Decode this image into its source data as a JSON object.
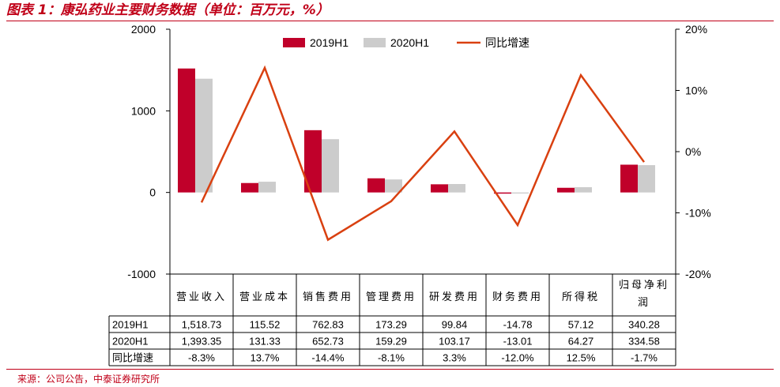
{
  "figure": {
    "title": "图表 1：康弘药业主要财务数据（单位：百万元，%）",
    "source": "来源：公司公告，中泰证券研究所"
  },
  "colors": {
    "s2019": "#c0002a",
    "s2020": "#cccccc",
    "line": "#d94010",
    "accent": "#c00018"
  },
  "chart_data": {
    "type": "bar",
    "title": "康弘药业主要财务数据",
    "units": "百万元，%",
    "categories": [
      "营业收入",
      "营业成本",
      "销售费用",
      "管理费用",
      "研发费用",
      "财务费用",
      "所得税",
      "归母净利润"
    ],
    "category_labels": [
      [
        "营业收入"
      ],
      [
        "营业成本"
      ],
      [
        "销售费用"
      ],
      [
        "管理费用"
      ],
      [
        "研发费用"
      ],
      [
        "财务费用"
      ],
      [
        "所得税"
      ],
      [
        "归母净利",
        "润"
      ]
    ],
    "series": [
      {
        "name": "2019H1",
        "type": "bar",
        "axis": "left",
        "values": [
          1518.73,
          115.52,
          762.83,
          173.29,
          99.84,
          -14.78,
          57.12,
          340.28
        ]
      },
      {
        "name": "2020H1",
        "type": "bar",
        "axis": "left",
        "values": [
          1393.35,
          131.33,
          652.73,
          159.29,
          103.17,
          -13.01,
          64.27,
          334.58
        ]
      },
      {
        "name": "同比增速",
        "type": "line",
        "axis": "right",
        "values": [
          -8.3,
          13.7,
          -14.4,
          -8.1,
          3.3,
          -12.0,
          12.5,
          -1.7
        ]
      }
    ],
    "left_axis": {
      "min": -1000,
      "max": 2000,
      "ticks": [
        -1000,
        0,
        1000,
        2000
      ],
      "tick_labels": [
        "-1000",
        "0",
        "1000",
        "2000"
      ]
    },
    "right_axis": {
      "min": -20,
      "max": 20,
      "ticks": [
        -20,
        -10,
        0,
        10,
        20
      ],
      "tick_labels": [
        "-20%",
        "-10%",
        "0%",
        "10%",
        "20%"
      ]
    },
    "legend": [
      "2019H1",
      "2020H1",
      "同比增速"
    ],
    "legend_position": "top-center",
    "table": {
      "rows": [
        {
          "label": "2019H1",
          "cells": [
            "1,518.73",
            "115.52",
            "762.83",
            "173.29",
            "99.84",
            "-14.78",
            "57.12",
            "340.28"
          ]
        },
        {
          "label": "2020H1",
          "cells": [
            "1,393.35",
            "131.33",
            "652.73",
            "159.29",
            "103.17",
            "-13.01",
            "64.27",
            "334.58"
          ]
        },
        {
          "label": "同比增速",
          "cells": [
            "-8.3%",
            "13.7%",
            "-14.4%",
            "-8.1%",
            "3.3%",
            "-12.0%",
            "12.5%",
            "-1.7%"
          ]
        }
      ]
    }
  }
}
